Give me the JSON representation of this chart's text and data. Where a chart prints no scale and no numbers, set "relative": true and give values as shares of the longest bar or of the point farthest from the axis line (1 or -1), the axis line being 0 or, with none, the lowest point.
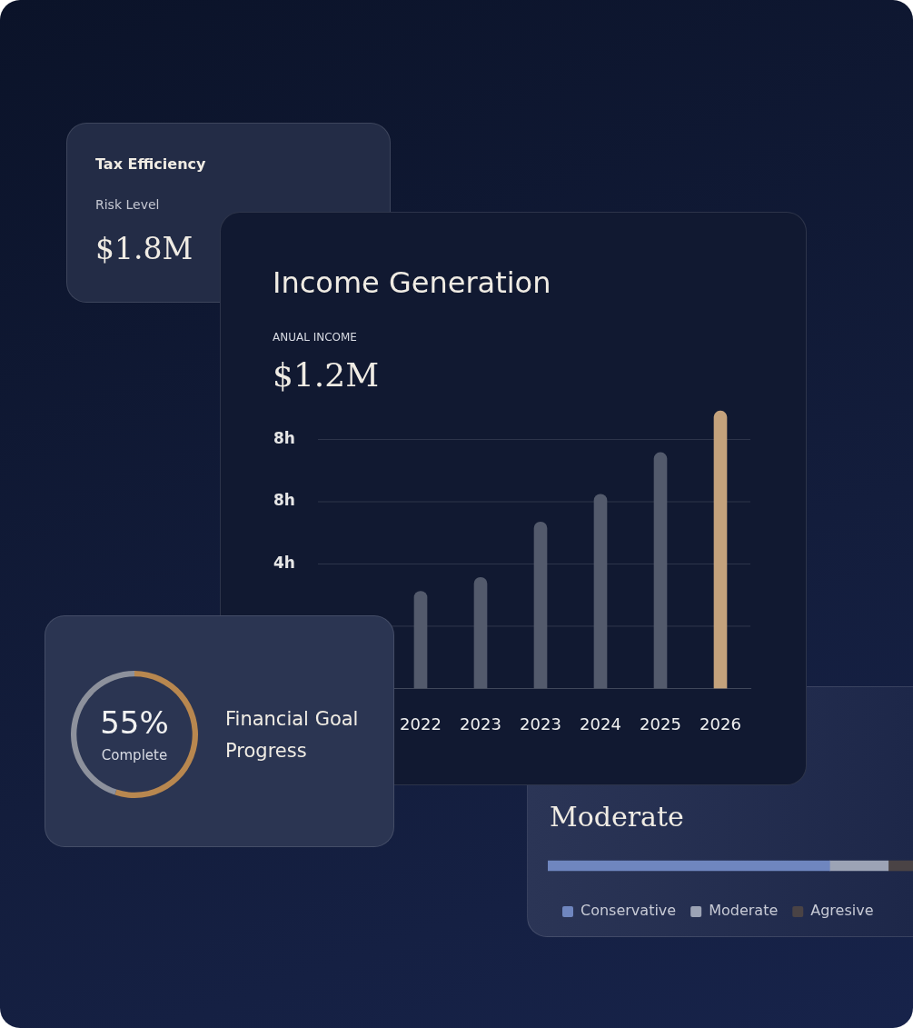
{
  "chart_data": [
    {
      "type": "other",
      "title": "Tax Efficiency",
      "subtitle": "Risk Level",
      "annotations": [
        "$1.8M"
      ]
    },
    {
      "type": "bar",
      "title": "Income Generation",
      "annotations": [
        "ANUAL INCOME",
        "$1.2M",
        "8h",
        "8h",
        "4h"
      ],
      "categories": [
        "2022",
        "2023",
        "2023",
        "2024",
        "2025",
        "2026"
      ],
      "values": [
        0.35,
        0.4,
        0.6,
        0.7,
        0.85,
        1
      ],
      "relative": true,
      "colors": [
        "#535a6c",
        "#535a6c",
        "#535a6c",
        "#535a6c",
        "#535a6c",
        "#c4a27c"
      ],
      "grid": "y",
      "legend": false
    },
    {
      "type": "donut",
      "title": "Financial Goal Progress",
      "categories": [
        null,
        null
      ],
      "values": [
        55,
        45
      ],
      "colors": [
        "#b8874f",
        "#8d919c"
      ],
      "value_labels": [
        "55%",
        null
      ],
      "annotations": [
        "Complete"
      ],
      "legend": false
    },
    {
      "type": "bar",
      "title": "Moderate",
      "orientation": "horizontal",
      "stacked": true,
      "relative": true,
      "categories": [
        null
      ],
      "legend": "bottom",
      "series": [
        {
          "name": "Conservative",
          "color": "#6f86bf",
          "values": [
            0.77
          ]
        },
        {
          "name": "Moderate",
          "color": "#9ca3b5",
          "values": [
            0.16
          ]
        },
        {
          "name": "Agresive",
          "color": "#4a4345",
          "values": [
            0.07
          ]
        }
      ]
    }
  ]
}
